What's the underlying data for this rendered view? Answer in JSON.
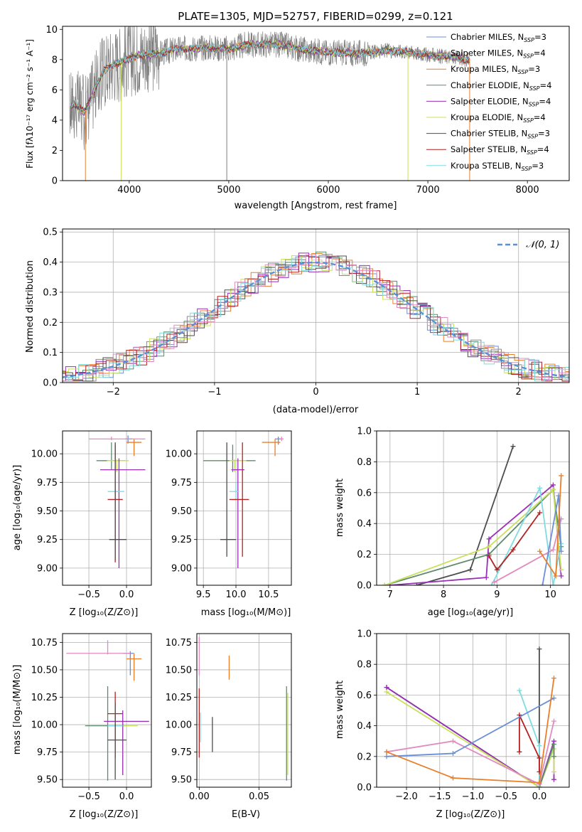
{
  "chart_data": [
    {
      "id": "spectrum",
      "type": "line",
      "title": "PLATE=1305, MJD=52757, FIBERID=0299, z=0.121",
      "xlabel": "wavelength [Angstrom, rest frame]",
      "ylabel": "Flux [fλ10⁻¹⁷ erg cm⁻² s⁻¹ A⁻¹]",
      "xlim": [
        3330,
        8420
      ],
      "ylim": [
        0,
        10.2
      ],
      "xticks": [
        4000,
        5000,
        6000,
        7000,
        8000
      ],
      "yticks": [
        0,
        2,
        4,
        6,
        8,
        10
      ],
      "grid": false,
      "legend_position": "right",
      "observed_color": "#808080",
      "models": [
        {
          "name": "Chabrier MILES, N",
          "sub": "SSP",
          "suffix": "=3",
          "color": "#6b8fd6"
        },
        {
          "name": "Salpeter MILES, N",
          "sub": "SSP",
          "suffix": "=4",
          "color": "#8c8c8c"
        },
        {
          "name": "Kroupa MILES, N",
          "sub": "SSP",
          "suffix": "=3",
          "color": "#e87f2c"
        },
        {
          "name": "Chabrier ELODIE, N",
          "sub": "SSP",
          "suffix": "=4",
          "color": "#5e8b6e"
        },
        {
          "name": "Salpeter ELODIE, N",
          "sub": "SSP",
          "suffix": "=4",
          "color": "#9a2fb8"
        },
        {
          "name": "Kroupa ELODIE, N",
          "sub": "SSP",
          "suffix": "=4",
          "color": "#c8e05a"
        },
        {
          "name": "Chabrier STELIB, N",
          "sub": "SSP",
          "suffix": "=3",
          "color": "#4d4d4d"
        },
        {
          "name": "Salpeter STELIB, N",
          "sub": "SSP",
          "suffix": "=4",
          "color": "#b22222"
        },
        {
          "name": "Kroupa STELIB, N",
          "sub": "SSP",
          "suffix": "=3",
          "color": "#7fdbe0"
        }
      ],
      "model_color_names": [
        "cornflowerblue",
        "gray",
        "orange",
        "darkseagreen",
        "purple",
        "yellowgreen",
        "dimgray",
        "firebrick",
        "turquoise"
      ],
      "continuum_points": [
        [
          3400,
          4.9
        ],
        [
          3450,
          5.1
        ],
        [
          3550,
          4.5
        ],
        [
          3650,
          6.0
        ],
        [
          3750,
          7.3
        ],
        [
          3850,
          7.7
        ],
        [
          3950,
          7.9
        ],
        [
          4100,
          8.3
        ],
        [
          4300,
          8.4
        ],
        [
          4500,
          8.7
        ],
        [
          4800,
          8.8
        ],
        [
          5000,
          8.7
        ],
        [
          5200,
          9.0
        ],
        [
          5500,
          9.0
        ],
        [
          5800,
          8.6
        ],
        [
          6000,
          8.5
        ],
        [
          6300,
          8.4
        ],
        [
          6600,
          8.6
        ],
        [
          6800,
          8.5
        ],
        [
          7000,
          8.3
        ],
        [
          7200,
          8.2
        ],
        [
          7400,
          8.0
        ]
      ],
      "observed_range": [
        3400,
        8400
      ],
      "dropouts": [
        [
          3560,
          "#e87f2c"
        ],
        [
          3920,
          "#c8e05a"
        ],
        [
          4980,
          "#808080"
        ],
        [
          6800,
          "#c8e05a"
        ],
        [
          7420,
          "#e87f2c"
        ]
      ]
    },
    {
      "id": "residuals",
      "type": "line",
      "xlabel": "(data-model)/error",
      "ylabel": "Normed distribution",
      "xlim": [
        -2.5,
        2.5
      ],
      "ylim": [
        0,
        0.51
      ],
      "xticks": [
        -2,
        -1,
        0,
        1,
        2
      ],
      "yticks": [
        0.0,
        0.1,
        0.2,
        0.3,
        0.4,
        0.5
      ],
      "grid": true,
      "legend_position": "top-right",
      "reference_curve": {
        "name": "𝒩(0, 1)",
        "color": "#5b8fd6"
      },
      "hist_colors": [
        "#6b8fd6",
        "#8c8c8c",
        "#e87f2c",
        "#5e8b6e",
        "#9a2fb8",
        "#c8e05a",
        "#4d4d4d",
        "#b22222",
        "#7fdbe0",
        "#e08cc0"
      ]
    },
    {
      "id": "age_vs_Z",
      "type": "scatter",
      "xlabel": "Z [log₁₀(Z/Z⊙)]",
      "ylabel": "age  [log₁₀(age/yr)]",
      "xlim": [
        -0.85,
        0.33
      ],
      "ylim": [
        8.85,
        10.2
      ],
      "xticks": [
        -0.5,
        0.0
      ],
      "yticks": [
        9.0,
        9.25,
        9.5,
        9.75,
        10.0
      ],
      "xtick_labels": [
        "−0.5",
        "0.0"
      ],
      "ytick_labels": [
        "9.00",
        "9.25",
        "9.50",
        "9.75",
        "10.00"
      ],
      "grid": true,
      "points": [
        {
          "x": 0.02,
          "xerr": [
            0.04,
            0.06
          ],
          "y": 10.13,
          "yerr": [
            0.04,
            0.03
          ],
          "color": "#6b8fd6"
        },
        {
          "x": 0.1,
          "xerr": [
            0.1,
            0.1
          ],
          "y": 10.1,
          "yerr": [
            0.12,
            0.03
          ],
          "color": "#e87f2c"
        },
        {
          "x": -0.2,
          "xerr": [
            0.3,
            0.45
          ],
          "y": 10.13,
          "yerr": [
            0.01,
            0.02
          ],
          "color": "#e08cc0"
        },
        {
          "x": -0.2,
          "xerr": [
            0.2,
            0.18
          ],
          "y": 9.94,
          "yerr": [
            0.08,
            0.16
          ],
          "color": "#5e8b6e"
        },
        {
          "x": -0.13,
          "xerr": [
            0.13,
            0.16
          ],
          "y": 9.94,
          "yerr": [
            0.1,
            0.01
          ],
          "color": "#c8e05a"
        },
        {
          "x": -0.1,
          "xerr": [
            0.25,
            0.35
          ],
          "y": 9.86,
          "yerr": [
            0.86,
            0.1
          ],
          "color": "#9a2fb8"
        },
        {
          "x": -0.15,
          "xerr": [
            0.1,
            0.12
          ],
          "y": 9.67,
          "yerr": [
            0.1,
            0.06
          ],
          "color": "#7fdbe0"
        },
        {
          "x": -0.15,
          "xerr": [
            0.1,
            0.1
          ],
          "y": 9.6,
          "yerr": [
            0.55,
            0.48
          ],
          "color": "#b22222"
        },
        {
          "x": -0.15,
          "xerr": [
            0.08,
            0.15
          ],
          "y": 9.25,
          "yerr": [
            0.18,
            0.85
          ],
          "color": "#4d4d4d"
        }
      ]
    },
    {
      "id": "age_vs_mass",
      "type": "scatter",
      "xlabel": "mass [log₁₀(M/M⊙)]",
      "xlim": [
        9.4,
        10.85
      ],
      "ylim": [
        8.85,
        10.2
      ],
      "xticks": [
        9.5,
        10.0,
        10.5
      ],
      "yticks": [
        9.0,
        9.25,
        9.5,
        9.75,
        10.0
      ],
      "xtick_labels": [
        "9.5",
        "10.0",
        "10.5"
      ],
      "ytick_labels": [
        "9.00",
        "9.25",
        "9.50",
        "9.75",
        "10.00"
      ],
      "grid": true,
      "points": [
        {
          "x": 10.65,
          "xerr": [
            0.05,
            0.05
          ],
          "y": 10.13,
          "yerr": [
            0.05,
            0.02
          ],
          "color": "#6b8fd6"
        },
        {
          "x": 10.6,
          "xerr": [
            0.2,
            0.08
          ],
          "y": 10.1,
          "yerr": [
            0.12,
            0.03
          ],
          "color": "#e87f2c"
        },
        {
          "x": 10.7,
          "xerr": [
            0.03,
            0.03
          ],
          "y": 10.13,
          "yerr": [
            0.02,
            0.02
          ],
          "color": "#e08cc0"
        },
        {
          "x": 9.95,
          "xerr": [
            0.45,
            0.35
          ],
          "y": 9.94,
          "yerr": [
            0.1,
            0.14
          ],
          "color": "#5e8b6e"
        },
        {
          "x": 9.98,
          "xerr": [
            0.08,
            0.18
          ],
          "y": 9.94,
          "yerr": [
            0.1,
            0.01
          ],
          "color": "#c8e05a"
        },
        {
          "x": 10.03,
          "xerr": [
            0.1,
            0.1
          ],
          "y": 9.86,
          "yerr": [
            0.86,
            0.1
          ],
          "color": "#9a2fb8"
        },
        {
          "x": 10.0,
          "xerr": [
            0.1,
            0.05
          ],
          "y": 9.67,
          "yerr": [
            0.08,
            0.08
          ],
          "color": "#7fdbe0"
        },
        {
          "x": 10.1,
          "xerr": [
            0.2,
            0.1
          ],
          "y": 9.6,
          "yerr": [
            0.5,
            0.5
          ],
          "color": "#b22222"
        },
        {
          "x": 9.86,
          "xerr": [
            0.1,
            0.14
          ],
          "y": 9.25,
          "yerr": [
            0.15,
            0.85
          ],
          "color": "#4d4d4d"
        }
      ]
    },
    {
      "id": "weight_vs_age",
      "type": "line",
      "xlabel": "age  [log₁₀(age/yr)]",
      "ylabel": "mass weight",
      "xlim": [
        6.75,
        10.35
      ],
      "ylim": [
        0,
        1.0
      ],
      "xticks": [
        7,
        8,
        9,
        10
      ],
      "yticks": [
        0.0,
        0.2,
        0.4,
        0.6,
        0.8,
        1.0
      ],
      "xtick_labels": [
        "7",
        "8",
        "9",
        "10"
      ],
      "ytick_labels": [
        "0.0",
        "0.2",
        "0.4",
        "0.6",
        "0.8",
        "1.0"
      ],
      "grid": true,
      "series": [
        {
          "color": "#4d4d4d",
          "x": [
            7.5,
            8.5,
            9.3
          ],
          "y": [
            0.0,
            0.1,
            0.9
          ]
        },
        {
          "color": "#9a2fb8",
          "x": [
            7.0,
            8.8,
            8.85,
            10.05,
            10.2
          ],
          "y": [
            0.0,
            0.05,
            0.3,
            0.65,
            0.06
          ]
        },
        {
          "color": "#5e8b6e",
          "x": [
            6.9,
            8.85,
            10.05,
            10.2
          ],
          "y": [
            0.0,
            0.2,
            0.62,
            0.25
          ]
        },
        {
          "color": "#c8e05a",
          "x": [
            6.9,
            8.85,
            10.05,
            10.2
          ],
          "y": [
            0.0,
            0.25,
            0.62,
            0.1
          ]
        },
        {
          "color": "#7fdbe0",
          "x": [
            8.9,
            9.8,
            10.05,
            10.2
          ],
          "y": [
            0.0,
            0.63,
            0.0,
            0.27
          ]
        },
        {
          "color": "#b22222",
          "x": [
            8.85,
            9.0,
            9.3,
            9.8
          ],
          "y": [
            0.19,
            0.1,
            0.23,
            0.47
          ]
        },
        {
          "color": "#e08cc0",
          "x": [
            8.95,
            10.05,
            10.2
          ],
          "y": [
            0.02,
            0.23,
            0.43
          ]
        },
        {
          "color": "#6b8fd6",
          "x": [
            9.85,
            10.15,
            10.2
          ],
          "y": [
            0.0,
            0.58,
            0.22
          ]
        },
        {
          "color": "#e87f2c",
          "x": [
            9.8,
            10.1,
            10.2
          ],
          "y": [
            0.22,
            0.06,
            0.71
          ]
        }
      ]
    },
    {
      "id": "mass_vs_Z",
      "type": "scatter",
      "xlabel": "Z [log₁₀(Z/Z⊙)]",
      "ylabel": "mass [log₁₀(M/M⊙)]",
      "xlim": [
        -0.85,
        0.33
      ],
      "ylim": [
        9.43,
        10.83
      ],
      "xticks": [
        -0.5,
        0.0
      ],
      "yticks": [
        9.5,
        9.75,
        10.0,
        10.25,
        10.5,
        10.75
      ],
      "xtick_labels": [
        "−0.5",
        "0.0"
      ],
      "ytick_labels": [
        "9.50",
        "9.75",
        "10.00",
        "10.25",
        "10.50",
        "10.75"
      ],
      "grid": true,
      "points": [
        {
          "x": 0.05,
          "xerr": [
            0.1,
            0.05
          ],
          "y": 10.65,
          "yerr": [
            0.2,
            0.02
          ],
          "color": "#6b8fd6"
        },
        {
          "x": 0.1,
          "xerr": [
            0.1,
            0.1
          ],
          "y": 10.6,
          "yerr": [
            0.2,
            0.05
          ],
          "color": "#e87f2c"
        },
        {
          "x": -0.25,
          "xerr": [
            0.55,
            0.3
          ],
          "y": 10.65,
          "yerr": [
            0.01,
            0.12
          ],
          "color": "#e08cc0"
        },
        {
          "x": -0.25,
          "xerr": [
            0.3,
            0.1
          ],
          "y": 9.99,
          "yerr": [
            0.5,
            0.36
          ],
          "color": "#5e8b6e"
        },
        {
          "x": -0.05,
          "xerr": [
            0.2,
            0.2
          ],
          "y": 9.99,
          "yerr": [
            0.45,
            0.05
          ],
          "color": "#c8e05a"
        },
        {
          "x": -0.05,
          "xerr": [
            0.25,
            0.35
          ],
          "y": 10.03,
          "yerr": [
            0.49,
            0.1
          ],
          "color": "#9a2fb8"
        },
        {
          "x": -0.15,
          "xerr": [
            0.1,
            0.1
          ],
          "y": 9.99,
          "yerr": [
            0.1,
            0.1
          ],
          "color": "#7fdbe0"
        },
        {
          "x": -0.15,
          "xerr": [
            0.1,
            0.1
          ],
          "y": 10.1,
          "yerr": [
            0.4,
            0.2
          ],
          "color": "#b22222"
        },
        {
          "x": -0.15,
          "xerr": [
            0.1,
            0.15
          ],
          "y": 9.86,
          "yerr": [
            0.36,
            0.34
          ],
          "color": "#4d4d4d"
        }
      ]
    },
    {
      "id": "mass_vs_ebv",
      "type": "scatter",
      "xlabel": "E(B-V)",
      "xlim": [
        -0.002,
        0.077
      ],
      "ylim": [
        9.43,
        10.83
      ],
      "xticks": [
        0.0,
        0.05
      ],
      "yticks": [
        9.5,
        9.75,
        10.0,
        10.25,
        10.5,
        10.75
      ],
      "xtick_labels": [
        "0.00",
        "0.05"
      ],
      "ytick_labels": [
        "9.50",
        "9.75",
        "10.00",
        "10.25",
        "10.50",
        "10.75"
      ],
      "grid": true,
      "points": [
        {
          "x": 0.0,
          "y": 10.65,
          "yerr": [
            0.2,
            0.15
          ],
          "color": "#e08cc0"
        },
        {
          "x": 0.0,
          "y": 10.1,
          "yerr": [
            0.4,
            0.23
          ],
          "color": "#b22222"
        },
        {
          "x": 0.001,
          "y": 9.99,
          "yerr": [
            0.15,
            0.12
          ],
          "color": "#7fdbe0"
        },
        {
          "x": 0.011,
          "y": 9.91,
          "yerr": [
            0.16,
            0.16
          ],
          "color": "#4d4d4d"
        },
        {
          "x": 0.025,
          "y": 10.52,
          "yerr": [
            0.11,
            0.11
          ],
          "color": "#e87f2c"
        },
        {
          "x": 0.073,
          "y": 9.99,
          "yerr": [
            0.5,
            0.36
          ],
          "color": "#5e8b6e"
        },
        {
          "x": 0.074,
          "y": 9.99,
          "yerr": [
            0.45,
            0.3
          ],
          "color": "#c8e05a"
        }
      ]
    },
    {
      "id": "weight_vs_Z",
      "type": "line",
      "xlabel": "Z [log₁₀(Z/Z⊙)]",
      "ylabel": "mass weight",
      "xlim": [
        -2.45,
        0.45
      ],
      "ylim": [
        0,
        1.0
      ],
      "xticks": [
        -2.0,
        -1.5,
        -1.0,
        -0.5,
        0.0
      ],
      "yticks": [
        0.0,
        0.2,
        0.4,
        0.6,
        0.8,
        1.0
      ],
      "xtick_labels": [
        "−2.0",
        "−1.5",
        "−1.0",
        "−0.5",
        "0.0"
      ],
      "ytick_labels": [
        "0.0",
        "0.2",
        "0.4",
        "0.6",
        "0.8",
        "1.0"
      ],
      "grid": true,
      "series": [
        {
          "color": "#4d4d4d",
          "x": [
            -2.3,
            0.0,
            0.0
          ],
          "y": [
            0.65,
            0.0,
            0.9
          ]
        },
        {
          "color": "#9a2fb8",
          "x": [
            -2.3,
            0.0,
            0.22,
            0.22
          ],
          "y": [
            0.65,
            0.0,
            0.3,
            0.05
          ]
        },
        {
          "color": "#c8e05a",
          "x": [
            -2.3,
            0.0,
            0.22,
            0.22
          ],
          "y": [
            0.62,
            0.0,
            0.25,
            0.1
          ]
        },
        {
          "color": "#5e8b6e",
          "x": [
            0.0,
            0.22,
            0.22
          ],
          "y": [
            0.0,
            0.28,
            0.2
          ]
        },
        {
          "color": "#7fdbe0",
          "x": [
            -0.3,
            0.0,
            0.0
          ],
          "y": [
            0.63,
            0.27,
            0.0
          ]
        },
        {
          "color": "#b22222",
          "x": [
            -0.3,
            -0.3,
            0.0,
            0.0
          ],
          "y": [
            0.23,
            0.47,
            0.19,
            0.1
          ]
        },
        {
          "color": "#e08cc0",
          "x": [
            -2.3,
            -1.3,
            0.0,
            0.22
          ],
          "y": [
            0.23,
            0.3,
            0.02,
            0.43
          ]
        },
        {
          "color": "#6b8fd6",
          "x": [
            -2.3,
            -1.3,
            0.22
          ],
          "y": [
            0.2,
            0.22,
            0.58
          ]
        },
        {
          "color": "#e87f2c",
          "x": [
            -2.3,
            -1.3,
            0.0,
            0.22
          ],
          "y": [
            0.23,
            0.06,
            0.03,
            0.71
          ]
        }
      ]
    }
  ]
}
